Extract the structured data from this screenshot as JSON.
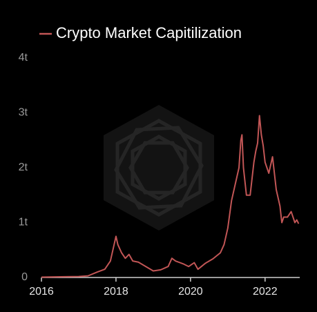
{
  "chart_data": {
    "type": "line",
    "x": [
      2016.0,
      2016.5,
      2017.0,
      2017.25,
      2017.5,
      2017.7,
      2017.85,
      2017.95,
      2018.0,
      2018.05,
      2018.15,
      2018.25,
      2018.35,
      2018.45,
      2018.6,
      2018.8,
      2019.0,
      2019.2,
      2019.4,
      2019.5,
      2019.6,
      2019.8,
      2019.95,
      2020.1,
      2020.2,
      2020.4,
      2020.6,
      2020.8,
      2020.9,
      2021.0,
      2021.1,
      2021.2,
      2021.3,
      2021.35,
      2021.38,
      2021.42,
      2021.5,
      2021.6,
      2021.7,
      2021.75,
      2021.8,
      2021.85,
      2021.9,
      2021.95,
      2022.0,
      2022.1,
      2022.2,
      2022.3,
      2022.4,
      2022.45,
      2022.5,
      2022.6,
      2022.7,
      2022.8,
      2022.85,
      2022.9
    ],
    "series": [
      {
        "name": "Crypto Market Capitilization",
        "color": "#c25656",
        "values": [
          0.007,
          0.012,
          0.018,
          0.03,
          0.1,
          0.15,
          0.3,
          0.6,
          0.75,
          0.6,
          0.45,
          0.35,
          0.42,
          0.3,
          0.28,
          0.2,
          0.12,
          0.14,
          0.2,
          0.35,
          0.3,
          0.25,
          0.2,
          0.27,
          0.15,
          0.26,
          0.34,
          0.45,
          0.6,
          0.9,
          1.4,
          1.7,
          2.0,
          2.5,
          2.6,
          2.0,
          1.5,
          1.5,
          2.1,
          2.3,
          2.45,
          2.95,
          2.6,
          2.4,
          2.1,
          1.9,
          2.2,
          1.6,
          1.3,
          1.0,
          1.1,
          1.1,
          1.2,
          1.0,
          1.05,
          0.98
        ]
      }
    ],
    "xlim": [
      2016,
      2022.93
    ],
    "xticks": [
      2016,
      2018,
      2020,
      2022
    ],
    "ylim": [
      0,
      4
    ],
    "yticks": [
      0,
      {
        "value": 1,
        "label": "1t"
      },
      {
        "value": 2,
        "label": "2t"
      },
      {
        "value": 3,
        "label": "3t"
      },
      {
        "value": 4,
        "label": "4t"
      }
    ],
    "legend": "top"
  }
}
